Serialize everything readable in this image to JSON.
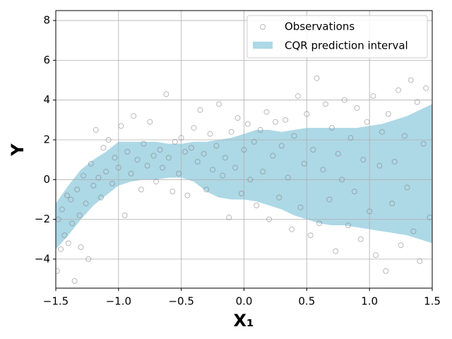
{
  "chart_data": {
    "type": "scatter",
    "xlabel": "X₁",
    "ylabel": "Y",
    "xlim": [
      -1.5,
      1.5
    ],
    "xticks": [
      {
        "value": -1.5,
        "label": "−1.5"
      },
      {
        "value": -1.0,
        "label": "−1.0"
      },
      {
        "value": -0.5,
        "label": "−0.5"
      },
      {
        "value": 0.0,
        "label": "0.0"
      },
      {
        "value": 0.5,
        "label": "0.5"
      },
      {
        "value": 1.0,
        "label": "1.0"
      },
      {
        "value": 1.5,
        "label": "1.5"
      }
    ],
    "ylim": [
      -5.46,
      8.5
    ],
    "yticks": [
      {
        "value": -4,
        "label": "−4"
      },
      {
        "value": -2,
        "label": "−2"
      },
      0,
      2,
      4,
      6,
      8
    ],
    "grid": true,
    "legend": "upper right",
    "series": [
      {
        "name": "Observations",
        "color": "#808080",
        "x": [
          -1.49,
          -1.48,
          -1.46,
          -1.45,
          -1.43,
          -1.41,
          -1.4,
          -1.38,
          -1.37,
          -1.35,
          -1.33,
          -1.31,
          -1.3,
          -1.28,
          -1.26,
          -1.24,
          -1.22,
          -1.2,
          -1.18,
          -1.16,
          -1.14,
          -1.12,
          -1.1,
          -1.08,
          -1.05,
          -1.03,
          -1.0,
          -0.98,
          -0.95,
          -0.93,
          -0.9,
          -0.88,
          -0.85,
          -0.82,
          -0.8,
          -0.77,
          -0.75,
          -0.72,
          -0.7,
          -0.67,
          -0.65,
          -0.62,
          -0.6,
          -0.57,
          -0.55,
          -0.52,
          -0.5,
          -0.47,
          -0.45,
          -0.42,
          -0.4,
          -0.37,
          -0.35,
          -0.32,
          -0.3,
          -0.27,
          -0.25,
          -0.22,
          -0.2,
          -0.17,
          -0.15,
          -0.12,
          -0.1,
          -0.07,
          -0.05,
          -0.02,
          0.0,
          0.03,
          0.05,
          0.08,
          0.1,
          0.13,
          0.15,
          0.18,
          0.2,
          0.23,
          0.25,
          0.28,
          0.3,
          0.33,
          0.35,
          0.38,
          0.4,
          0.43,
          0.45,
          0.48,
          0.5,
          0.53,
          0.55,
          0.58,
          0.6,
          0.63,
          0.65,
          0.68,
          0.7,
          0.73,
          0.75,
          0.78,
          0.8,
          0.83,
          0.85,
          0.88,
          0.9,
          0.93,
          0.95,
          0.98,
          1.0,
          1.03,
          1.05,
          1.08,
          1.1,
          1.13,
          1.15,
          1.18,
          1.2,
          1.23,
          1.25,
          1.28,
          1.3,
          1.33,
          1.35,
          1.38,
          1.4,
          1.43,
          1.45,
          1.48
        ],
        "values": [
          -4.6,
          -2.0,
          -3.5,
          -1.5,
          -2.8,
          -0.8,
          -3.2,
          -1.0,
          -2.2,
          -5.1,
          -0.5,
          -1.8,
          -3.4,
          0.2,
          -1.2,
          -4.0,
          0.8,
          -0.3,
          2.5,
          0.1,
          -0.9,
          1.6,
          0.4,
          2.0,
          -0.2,
          1.1,
          0.6,
          2.7,
          -1.8,
          1.4,
          0.3,
          3.2,
          1.0,
          -0.5,
          1.8,
          0.7,
          2.9,
          1.2,
          -0.1,
          1.5,
          0.6,
          4.3,
          1.1,
          -0.6,
          1.9,
          0.3,
          2.1,
          1.4,
          -0.8,
          1.6,
          2.6,
          0.9,
          3.5,
          1.3,
          -0.5,
          2.3,
          0.5,
          1.7,
          3.8,
          0.2,
          1.1,
          -1.9,
          2.4,
          0.6,
          3.1,
          -0.7,
          1.5,
          2.8,
          0.0,
          1.9,
          -1.3,
          2.5,
          0.4,
          3.4,
          -2.0,
          1.2,
          2.9,
          -0.9,
          1.7,
          3.0,
          0.1,
          -2.5,
          2.2,
          4.2,
          -1.4,
          0.8,
          3.3,
          -2.8,
          1.5,
          5.1,
          -2.2,
          0.5,
          3.8,
          -1.0,
          2.6,
          -3.6,
          1.3,
          0.0,
          4.0,
          -2.3,
          2.1,
          -0.6,
          3.6,
          -3.0,
          1.0,
          2.9,
          -1.6,
          4.2,
          -3.8,
          0.7,
          2.4,
          -4.6,
          3.3,
          -1.2,
          0.9,
          4.5,
          -3.3,
          2.2,
          -0.4,
          5.0,
          -2.6,
          3.9,
          -4.1,
          1.8,
          4.6,
          -1.9
        ]
      },
      {
        "name": "CQR prediction interval",
        "color": "#add8e6",
        "x": [
          -1.5,
          -1.4,
          -1.3,
          -1.2,
          -1.1,
          -1.0,
          -0.9,
          -0.8,
          -0.7,
          -0.6,
          -0.5,
          -0.4,
          -0.3,
          -0.2,
          -0.1,
          0.0,
          0.1,
          0.2,
          0.3,
          0.4,
          0.5,
          0.6,
          0.7,
          0.8,
          0.9,
          1.0,
          1.1,
          1.2,
          1.3,
          1.4,
          1.5
        ],
        "lower": [
          -3.5,
          -2.8,
          -2.0,
          -1.3,
          -0.8,
          -0.3,
          -0.1,
          0.0,
          0.0,
          0.1,
          0.1,
          -0.1,
          -0.6,
          -0.9,
          -1.0,
          -1.0,
          -1.1,
          -1.3,
          -1.5,
          -1.8,
          -2.0,
          -2.2,
          -2.3,
          -2.3,
          -2.4,
          -2.5,
          -2.6,
          -2.7,
          -2.8,
          -3.0,
          -3.2
        ],
        "upper": [
          -1.2,
          -0.3,
          0.5,
          1.0,
          1.4,
          1.9,
          1.9,
          1.9,
          1.9,
          1.8,
          1.8,
          1.9,
          1.9,
          2.0,
          2.1,
          2.3,
          2.5,
          2.5,
          2.4,
          2.5,
          2.6,
          2.6,
          2.6,
          2.6,
          2.6,
          2.7,
          2.8,
          3.0,
          3.2,
          3.5,
          3.8
        ]
      }
    ]
  }
}
